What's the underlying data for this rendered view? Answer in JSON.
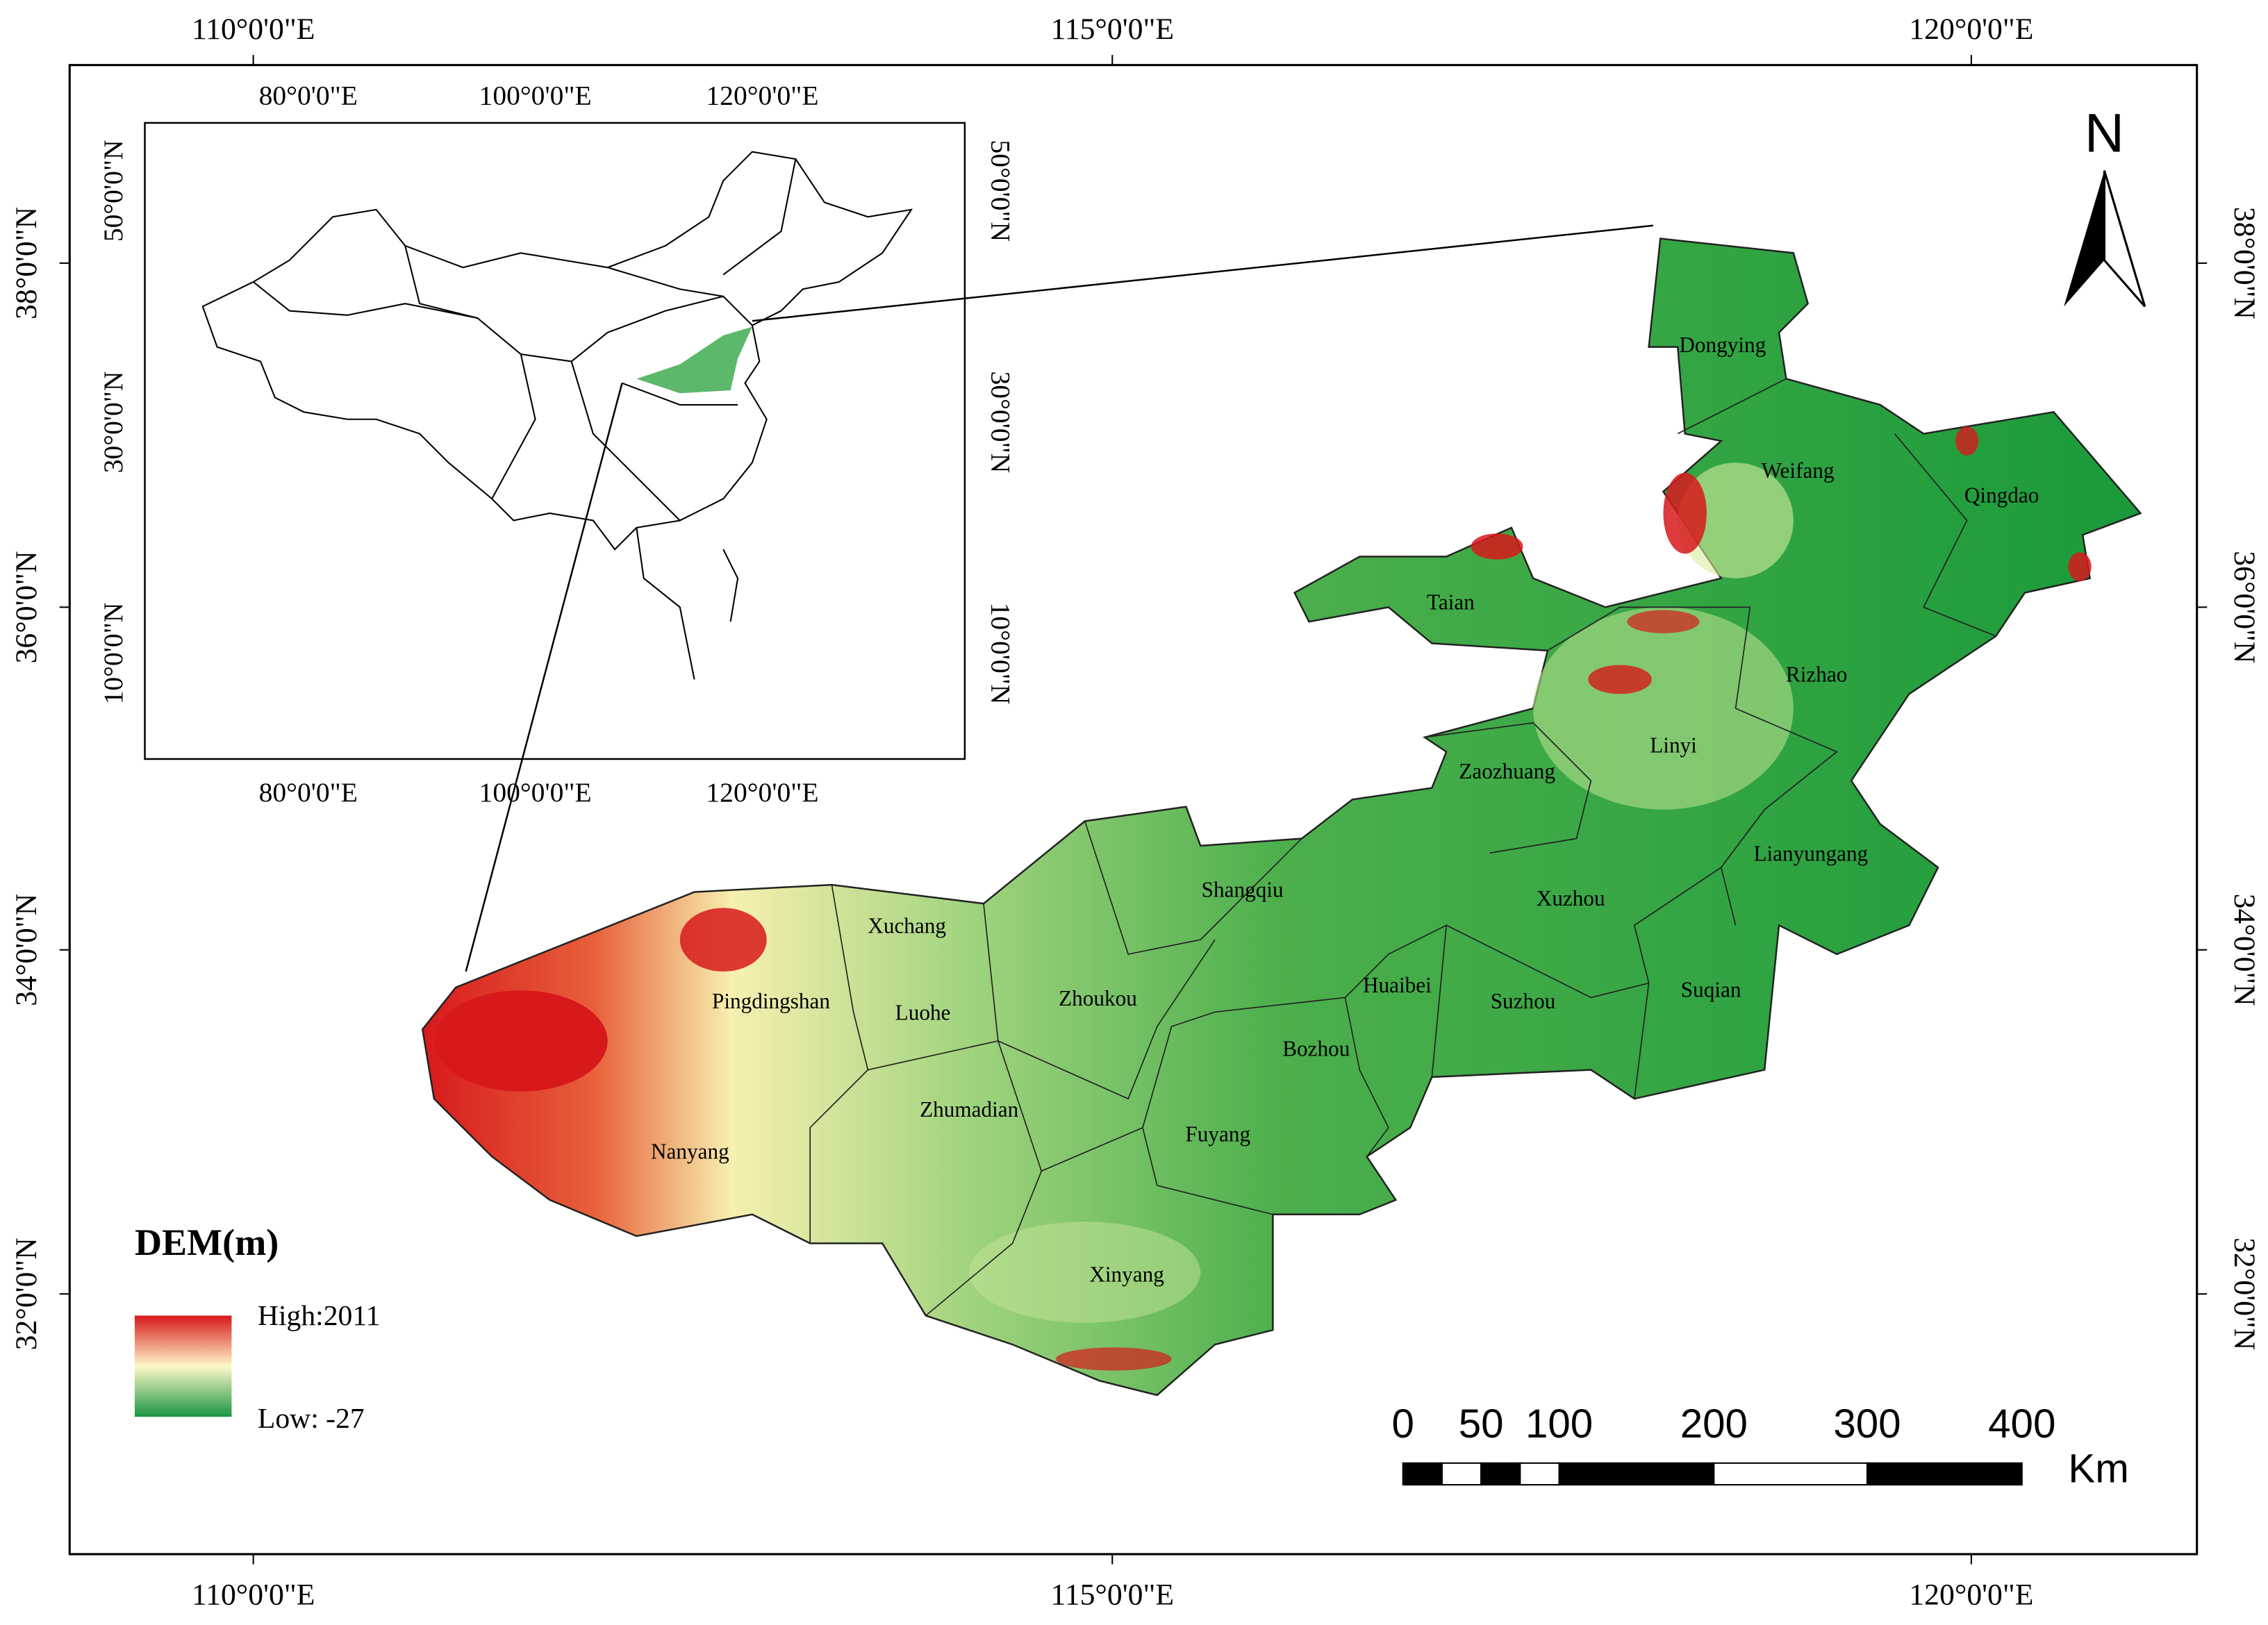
{
  "map": {
    "frame_ticks": {
      "top": [
        "110°0'0\"E",
        "115°0'0\"E",
        "120°0'0\"E"
      ],
      "bottom": [
        "110°0'0\"E",
        "115°0'0\"E",
        "120°0'0\"E"
      ],
      "left": [
        "38°0'0\"N",
        "36°0'0\"N",
        "34°0'0\"N",
        "32°0'0\"N"
      ],
      "right": [
        "38°0'0\"N",
        "36°0'0\"N",
        "34°0'0\"N",
        "32°0'0\"N"
      ]
    },
    "inset_ticks": {
      "top": [
        "80°0'0\"E",
        "100°0'0\"E",
        "120°0'0\"E"
      ],
      "bottom": [
        "80°0'0\"E",
        "100°0'0\"E",
        "120°0'0\"E"
      ],
      "left": [
        "50°0'0\"N",
        "30°0'0\"N",
        "10°0'0\"N"
      ],
      "right": [
        "50°0'0\"N",
        "30°0'0\"N",
        "10°0'0\"N"
      ]
    },
    "cities": [
      "Dongying",
      "Weifang",
      "Qingdao",
      "Taian",
      "Rizhao",
      "Linyi",
      "Zaozhuang",
      "Lianyungang",
      "Shangqiu",
      "Xuzhou",
      "Xuchang",
      "Pingdingshan",
      "Luohe",
      "Zhoukou",
      "Huaibei",
      "Suzhou",
      "Suqian",
      "Bozhou",
      "Zhumadian",
      "Fuyang",
      "Nanyang",
      "Xinyang"
    ],
    "legend": {
      "title": "DEM(m)",
      "high": "High:2011",
      "low": "Low: -27"
    },
    "scale_bar": {
      "labels": [
        "0",
        "50",
        "100",
        "200",
        "300",
        "400"
      ],
      "unit": "Km"
    },
    "north": "N"
  }
}
